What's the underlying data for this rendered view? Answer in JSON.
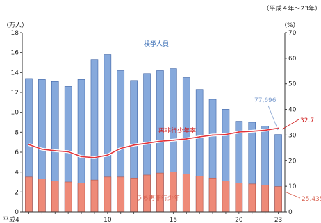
{
  "chart_data": {
    "type": "bar",
    "note_top": "（平成４年～23年）",
    "left_unit": "（万人）",
    "right_unit": "（%）",
    "x": [
      4,
      5,
      6,
      7,
      8,
      9,
      10,
      11,
      12,
      13,
      14,
      15,
      16,
      17,
      18,
      19,
      20,
      21,
      22,
      23
    ],
    "x_tick_labels": [
      {
        "x": 4,
        "label": "平成4"
      },
      {
        "x": 10,
        "label": "10"
      },
      {
        "x": 15,
        "label": "15"
      },
      {
        "x": 20,
        "label": "20"
      },
      {
        "x": 23,
        "label": "23"
      }
    ],
    "ylim_left": [
      0,
      18
    ],
    "yticks_left": [
      0,
      2,
      4,
      6,
      8,
      10,
      12,
      14,
      16,
      18
    ],
    "ylim_right": [
      0,
      70
    ],
    "yticks_right": [
      0,
      10,
      20,
      30,
      40,
      50,
      60,
      70
    ],
    "grid": false,
    "series": [
      {
        "name": "検挙人員",
        "type": "bar",
        "axis": "left",
        "color": "#86a9dc",
        "values": [
          13.4,
          13.3,
          13.1,
          12.6,
          13.3,
          15.3,
          15.8,
          14.2,
          13.2,
          13.9,
          14.2,
          14.4,
          13.5,
          12.3,
          11.3,
          10.3,
          9.1,
          9.0,
          8.6,
          7.77
        ]
      },
      {
        "name": "うち再非行少年",
        "type": "bar",
        "axis": "left",
        "color": "#ee8a78",
        "values": [
          3.5,
          3.3,
          3.1,
          3.0,
          2.9,
          3.2,
          3.5,
          3.5,
          3.4,
          3.7,
          3.9,
          4.0,
          3.8,
          3.6,
          3.4,
          3.1,
          2.9,
          2.8,
          2.7,
          2.54
        ]
      },
      {
        "name": "再非行少年率",
        "type": "line",
        "axis": "right",
        "color": "#e3343a",
        "values": [
          26.3,
          24.5,
          23.9,
          23.5,
          21.6,
          21.2,
          22.2,
          24.8,
          26.1,
          26.8,
          27.6,
          28.0,
          28.5,
          29.3,
          30.0,
          30.2,
          31.2,
          31.5,
          31.9,
          32.7
        ]
      }
    ],
    "annotations": {
      "bar_last_value": "77,696",
      "sub_last_value": "25,435",
      "rate_last_value": "32.7"
    }
  }
}
